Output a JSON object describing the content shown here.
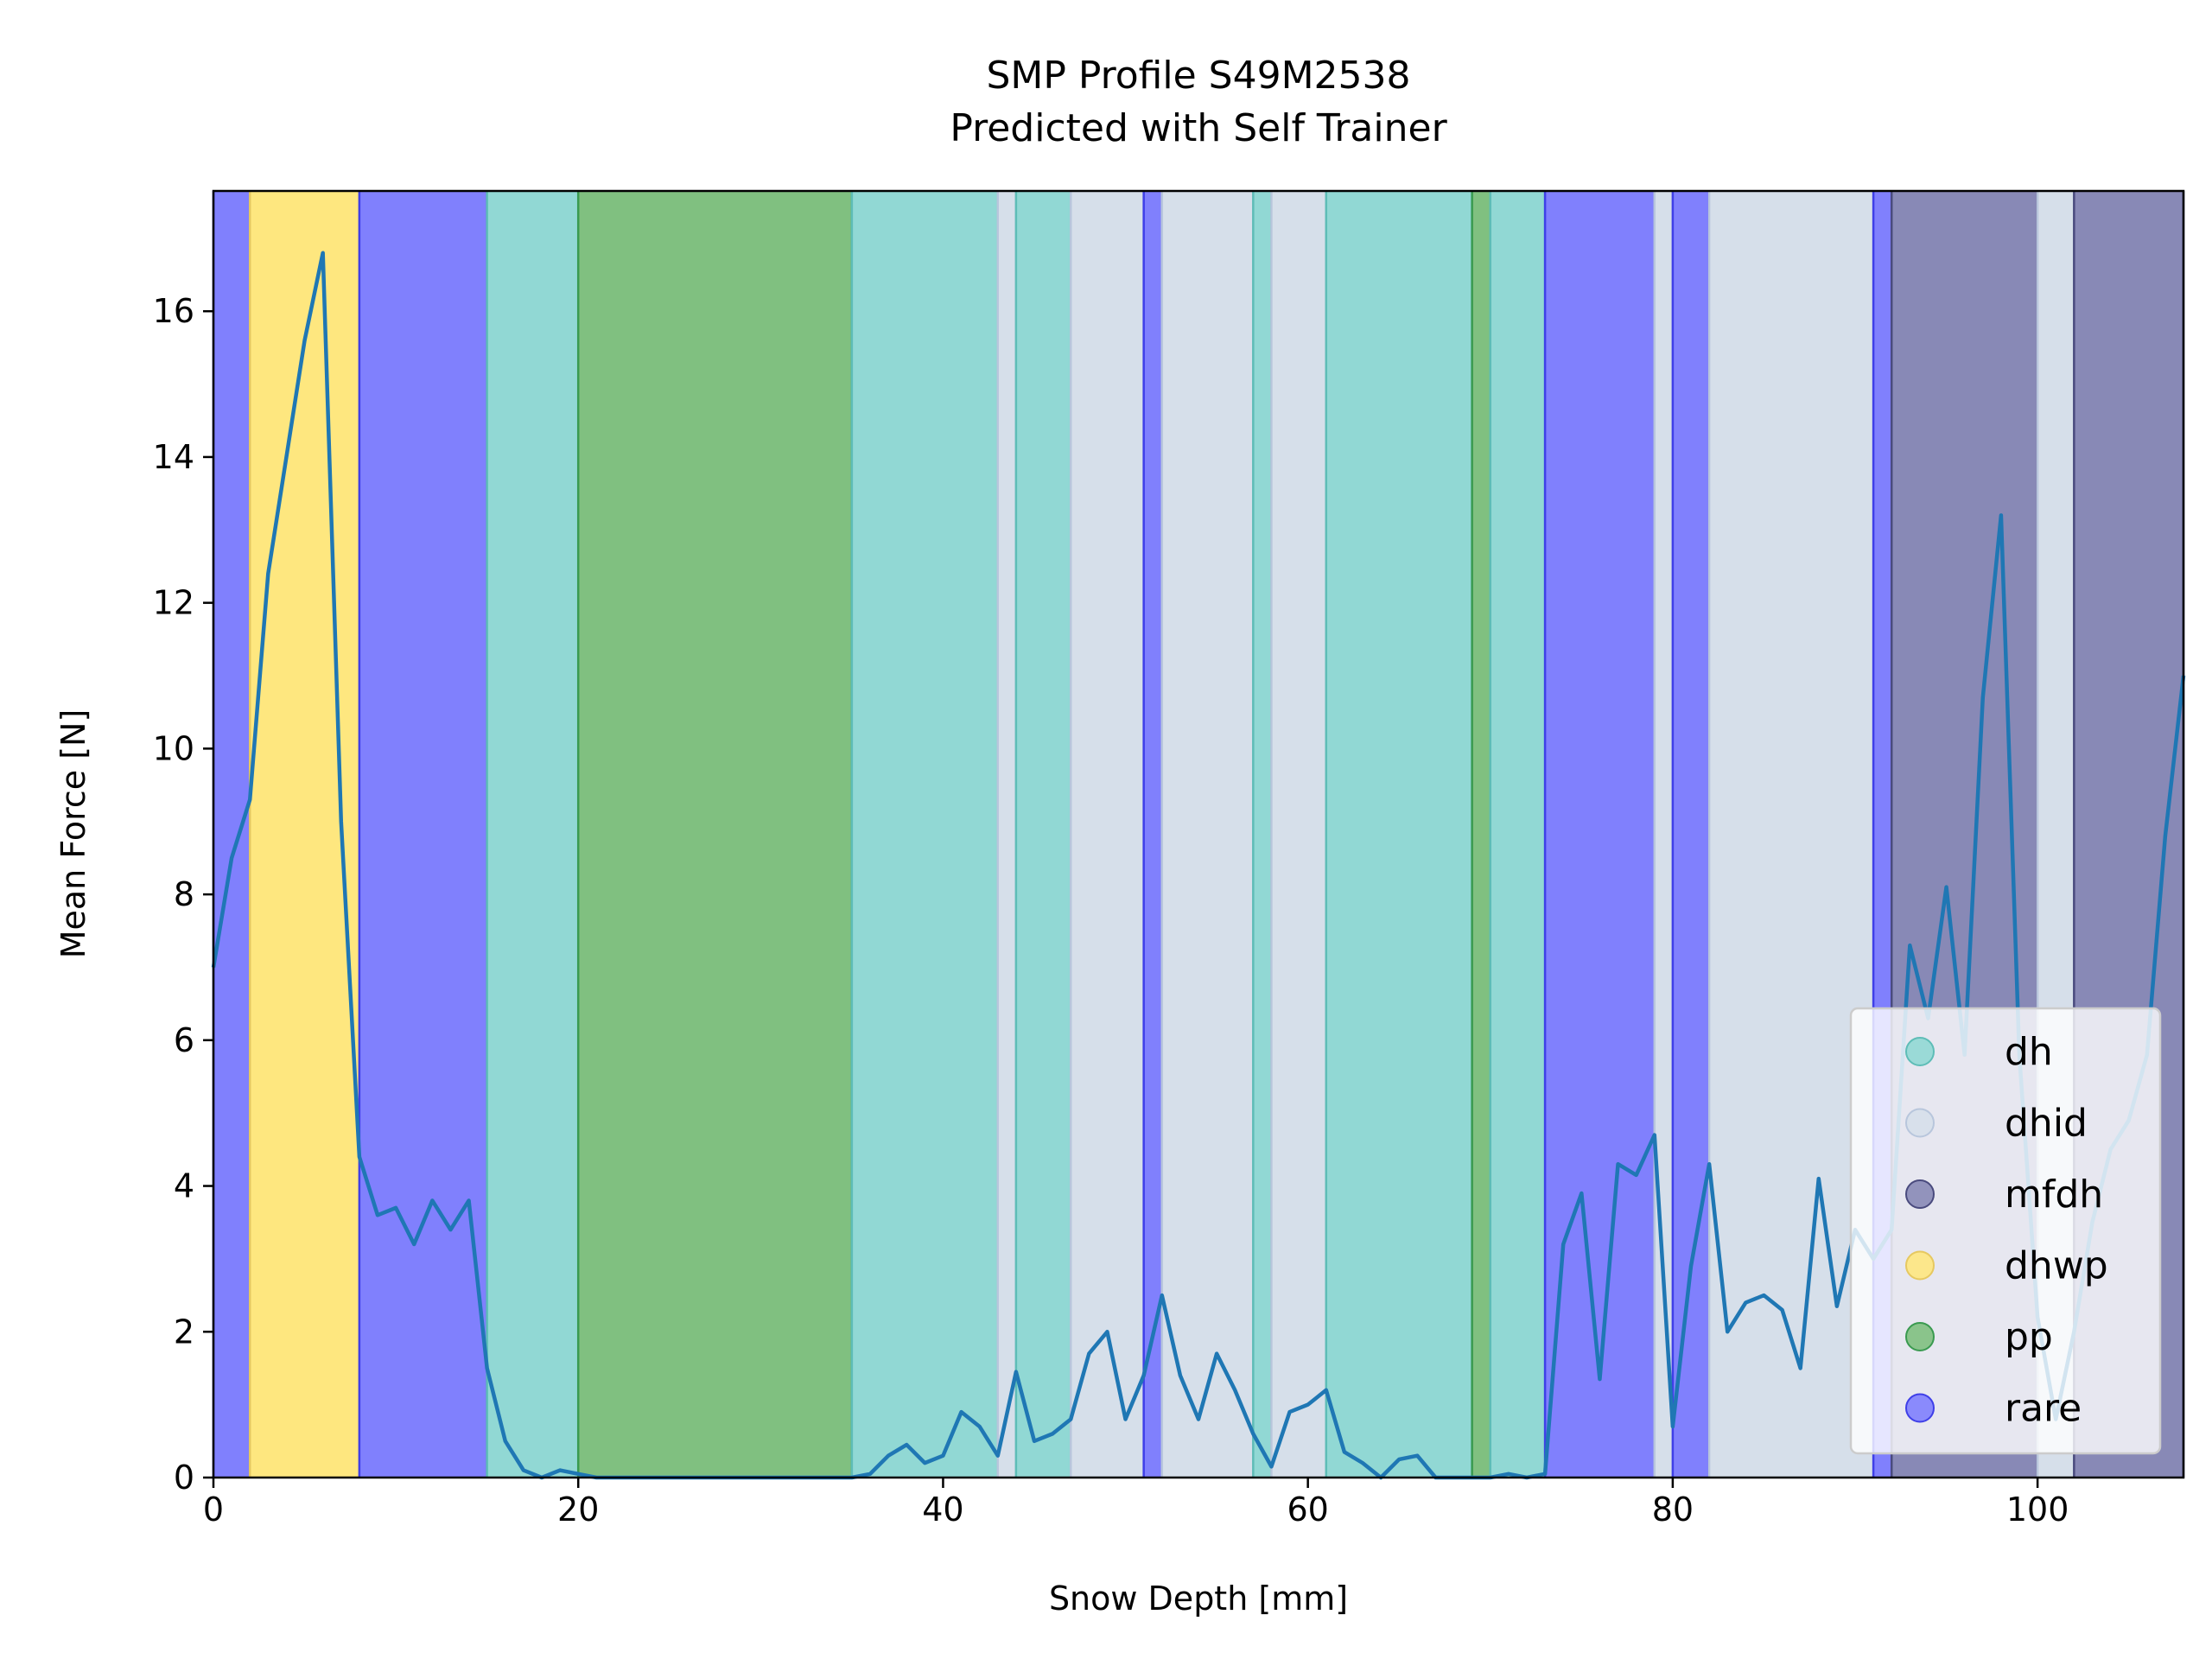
{
  "chart_data": {
    "type": "line",
    "title": "SMP Profile S49M2538",
    "subtitle": "Predicted with Self Trainer",
    "xlabel": "Snow Depth [mm]",
    "ylabel": "Mean Force [N]",
    "xlim": [
      0,
      108
    ],
    "ylim": [
      0,
      17.65
    ],
    "xticks": [
      0,
      20,
      40,
      60,
      80,
      100
    ],
    "yticks": [
      0,
      2,
      4,
      6,
      8,
      10,
      12,
      14,
      16
    ],
    "grid": false,
    "legend_position": "lower-right",
    "line_color": "#1f77b4",
    "series": [
      {
        "x": [
          0,
          1,
          2,
          3,
          4,
          5,
          6,
          7,
          8,
          9,
          10,
          11,
          12,
          13,
          14,
          15,
          16,
          17,
          18,
          19,
          20,
          21,
          22,
          23,
          24,
          25,
          26,
          27,
          28,
          29,
          30,
          31,
          32,
          33,
          34,
          35,
          36,
          37,
          38,
          39,
          40,
          41,
          42,
          43,
          44,
          45,
          46,
          47,
          48,
          49,
          50,
          51,
          52,
          53,
          54,
          55,
          56,
          57,
          58,
          59,
          60,
          61,
          62,
          63,
          64,
          65,
          66,
          67,
          68,
          69,
          70,
          71,
          72,
          73,
          74,
          75,
          76,
          77,
          78,
          79,
          80,
          81,
          82,
          83,
          84,
          85,
          86,
          87,
          88,
          89,
          90,
          91,
          92,
          93,
          94,
          95,
          96,
          97,
          98,
          99,
          100,
          101,
          102,
          103,
          104,
          105,
          106,
          107,
          108
        ],
        "values": [
          7.0,
          8.5,
          9.3,
          12.4,
          14.0,
          15.6,
          16.8,
          9.0,
          4.4,
          3.6,
          3.7,
          3.2,
          3.8,
          3.4,
          3.8,
          1.5,
          0.5,
          0.1,
          0.0,
          0.1,
          0.05,
          0.0,
          0.0,
          0.0,
          0.0,
          0.0,
          0.0,
          0.0,
          0.0,
          0.0,
          0.0,
          0.0,
          0.0,
          0.0,
          0.0,
          0.0,
          0.05,
          0.3,
          0.45,
          0.2,
          0.3,
          0.9,
          0.7,
          0.3,
          1.45,
          0.5,
          0.6,
          0.8,
          1.7,
          2.0,
          0.8,
          1.4,
          2.5,
          1.4,
          0.8,
          1.7,
          1.2,
          0.6,
          0.15,
          0.9,
          1.0,
          1.2,
          0.35,
          0.2,
          0.0,
          0.25,
          0.3,
          0.0,
          0.0,
          0.0,
          0.0,
          0.05,
          0.0,
          0.05,
          3.2,
          3.9,
          1.35,
          4.3,
          4.15,
          4.7,
          0.7,
          2.9,
          4.3,
          2.0,
          2.4,
          2.5,
          2.3,
          1.5,
          4.1,
          2.35,
          3.4,
          3.0,
          3.4,
          7.3,
          6.3,
          8.1,
          5.8,
          10.7,
          13.2,
          5.8,
          2.2,
          0.8,
          2.0,
          3.5,
          4.5,
          4.9,
          5.8,
          8.8,
          11.0
        ]
      }
    ],
    "bands": [
      {
        "x0": 0,
        "x1": 2,
        "label": "rare"
      },
      {
        "x0": 2,
        "x1": 8,
        "label": "dhwp"
      },
      {
        "x0": 8,
        "x1": 15,
        "label": "rare"
      },
      {
        "x0": 15,
        "x1": 20,
        "label": "dh"
      },
      {
        "x0": 20,
        "x1": 35,
        "label": "pp"
      },
      {
        "x0": 35,
        "x1": 43,
        "label": "dh"
      },
      {
        "x0": 43,
        "x1": 44,
        "label": "dhid"
      },
      {
        "x0": 44,
        "x1": 47,
        "label": "dh"
      },
      {
        "x0": 47,
        "x1": 51,
        "label": "dhid"
      },
      {
        "x0": 51,
        "x1": 52,
        "label": "rare"
      },
      {
        "x0": 52,
        "x1": 57,
        "label": "dhid"
      },
      {
        "x0": 57,
        "x1": 58,
        "label": "dh"
      },
      {
        "x0": 58,
        "x1": 61,
        "label": "dhid"
      },
      {
        "x0": 61,
        "x1": 69,
        "label": "dh"
      },
      {
        "x0": 69,
        "x1": 70,
        "label": "pp"
      },
      {
        "x0": 70,
        "x1": 73,
        "label": "dh"
      },
      {
        "x0": 73,
        "x1": 79,
        "label": "rare"
      },
      {
        "x0": 79,
        "x1": 80,
        "label": "dhid"
      },
      {
        "x0": 80,
        "x1": 82,
        "label": "rare"
      },
      {
        "x0": 82,
        "x1": 91,
        "label": "dhid"
      },
      {
        "x0": 91,
        "x1": 92,
        "label": "rare"
      },
      {
        "x0": 92,
        "x1": 100,
        "label": "mfdh"
      },
      {
        "x0": 100,
        "x1": 102,
        "label": "dhid"
      },
      {
        "x0": 102,
        "x1": 108,
        "label": "mfdh"
      }
    ],
    "legend": [
      {
        "label": "dh",
        "color": "#91d8d4"
      },
      {
        "label": "dhid",
        "color": "#d6dfea"
      },
      {
        "label": "mfdh",
        "color": "#8889b6"
      },
      {
        "label": "dhwp",
        "color": "#fee77f"
      },
      {
        "label": "pp",
        "color": "#80c080"
      },
      {
        "label": "rare",
        "color": "#8080fd"
      }
    ],
    "band_edges": {
      "dh": "#5ebdb7",
      "dhid": "#b8c6dc",
      "mfdh": "#4a4b7e",
      "dhwp": "#e6c860",
      "pp": "#3a9a50",
      "rare": "#3f3fe8"
    }
  }
}
